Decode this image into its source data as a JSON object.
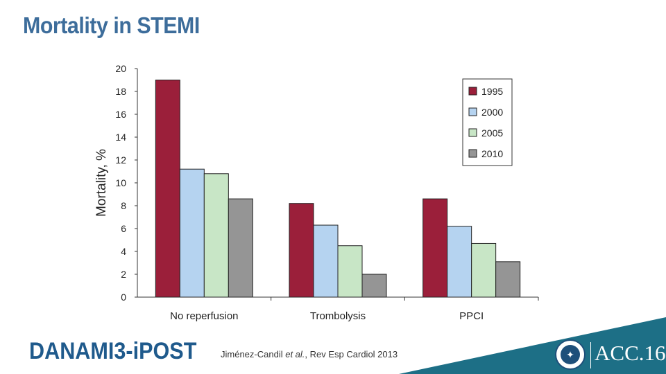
{
  "slide": {
    "title": "Mortality in STEMI",
    "footer_brand": "DANAMI3-iPOST",
    "citation_author": "Jiménez-Candil",
    "citation_etal": "et al.",
    "citation_rest": ", Rev Esp Cardiol 2013",
    "logo_text": "ACC.16",
    "band_color": "#1d6f86"
  },
  "chart_data": {
    "type": "bar",
    "title": "",
    "xlabel": "",
    "ylabel": "Mortality, %",
    "ylim": [
      0,
      20
    ],
    "yticks": [
      0,
      2,
      4,
      6,
      8,
      10,
      12,
      14,
      16,
      18,
      20
    ],
    "categories": [
      "No reperfusion",
      "Trombolysis",
      "PPCI"
    ],
    "series": [
      {
        "name": "1995",
        "color": "#9b1f3a",
        "values": [
          19.0,
          8.2,
          8.6
        ]
      },
      {
        "name": "2000",
        "color": "#b5d3f0",
        "values": [
          11.2,
          6.3,
          6.2
        ]
      },
      {
        "name": "2005",
        "color": "#c8e6c6",
        "values": [
          10.8,
          4.5,
          4.7
        ]
      },
      {
        "name": "2010",
        "color": "#959595",
        "values": [
          8.6,
          2.0,
          3.1
        ]
      }
    ],
    "legend_position": "top-right",
    "grid": false
  }
}
